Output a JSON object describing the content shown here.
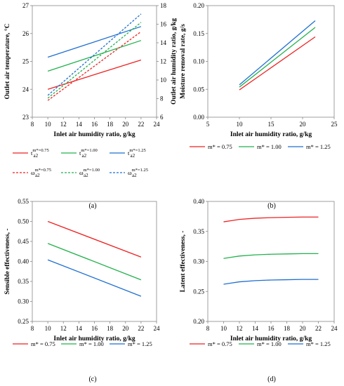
{
  "chart_data": [
    {
      "id": "a",
      "type": "line",
      "panel_label": "(a)",
      "xlabel": "Inlet air humidity ratio, g/kg",
      "ylabel": "Outlet air temperature, °C",
      "ylabel_right": "Outlet air humidity ratio, g/kg",
      "xlim": [
        8,
        24
      ],
      "xticks": [
        "8",
        "10",
        "12",
        "14",
        "16",
        "18",
        "20",
        "22",
        "24"
      ],
      "ylim": [
        23,
        27
      ],
      "yticks": [
        "23",
        "24",
        "25",
        "26",
        "27"
      ],
      "ylim_right": [
        6,
        18
      ],
      "yticks_right": [
        "6",
        "8",
        "10",
        "12",
        "14",
        "16",
        "18"
      ],
      "grid": false,
      "legend": {
        "placement": "below",
        "columns": 3
      },
      "series": [
        {
          "base": "t",
          "sub": "a2",
          "sup": "m*=0.75",
          "color": "#ee2222",
          "dash": "solid",
          "axis": "left",
          "x": [
            10,
            22
          ],
          "y": [
            24.0,
            25.05
          ]
        },
        {
          "base": "t",
          "sub": "a2",
          "sup": "m*=1.00",
          "color": "#22b14c",
          "dash": "solid",
          "axis": "left",
          "x": [
            10,
            22
          ],
          "y": [
            24.65,
            25.75
          ]
        },
        {
          "base": "t",
          "sub": "a2",
          "sup": "m*=1.25",
          "color": "#1f6fd1",
          "dash": "solid",
          "axis": "left",
          "x": [
            10,
            22
          ],
          "y": [
            25.15,
            26.25
          ]
        },
        {
          "base": "ω",
          "sub": "a2",
          "sup": "m*=0.75",
          "color": "#ee2222",
          "dash": "dashed",
          "axis": "right",
          "x": [
            10,
            22
          ],
          "y": [
            7.8,
            15.2
          ]
        },
        {
          "base": "ω",
          "sub": "a2",
          "sup": "m*=1.00",
          "color": "#22b14c",
          "dash": "dashed",
          "axis": "right",
          "x": [
            10,
            22
          ],
          "y": [
            8.05,
            16.2
          ]
        },
        {
          "base": "ω",
          "sub": "a2",
          "sup": "m*=1.25",
          "color": "#1f6fd1",
          "dash": "dashed",
          "axis": "right",
          "x": [
            10,
            22
          ],
          "y": [
            8.35,
            17.1
          ]
        }
      ]
    },
    {
      "id": "b",
      "type": "line",
      "panel_label": "(b)",
      "xlabel": "Inlet air humidity ratio, g/kg",
      "ylabel": "Moisture removal rate, g/s",
      "xlim": [
        5,
        25
      ],
      "xticks": [
        "5",
        "10",
        "15",
        "20",
        "25"
      ],
      "ylim": [
        0,
        0.2
      ],
      "yticks": [
        "0.00",
        "0.05",
        "0.10",
        "0.15",
        "0.20"
      ],
      "grid": false,
      "legend": {
        "placement": "below",
        "columns": 3
      },
      "series": [
        {
          "name": "m* = 0.75",
          "color": "#ee2222",
          "x": [
            10,
            22
          ],
          "y": [
            0.049,
            0.144
          ]
        },
        {
          "name": "m* = 1.00",
          "color": "#22b14c",
          "x": [
            10,
            22
          ],
          "y": [
            0.054,
            0.161
          ]
        },
        {
          "name": "m* = 1.25",
          "color": "#1f6fd1",
          "x": [
            10,
            22
          ],
          "y": [
            0.058,
            0.173
          ]
        }
      ]
    },
    {
      "id": "c",
      "type": "line",
      "panel_label": "(c)",
      "xlabel": "Inlet air humidity ratio, g/kg",
      "ylabel": "Sensible effectiveness, -",
      "xlim": [
        8,
        24
      ],
      "xticks": [
        "8",
        "10",
        "12",
        "14",
        "16",
        "18",
        "20",
        "22",
        "24"
      ],
      "ylim": [
        0.25,
        0.55
      ],
      "yticks": [
        "0.25",
        "0.30",
        "0.35",
        "0.40",
        "0.45",
        "0.50",
        "0.55"
      ],
      "grid": false,
      "legend": {
        "placement": "below",
        "columns": 3
      },
      "series": [
        {
          "name": "m* = 0.75",
          "color": "#ee2222",
          "x": [
            10,
            22
          ],
          "y": [
            0.5,
            0.411
          ]
        },
        {
          "name": "m* = 1.00",
          "color": "#22b14c",
          "x": [
            10,
            22
          ],
          "y": [
            0.445,
            0.354
          ]
        },
        {
          "name": "m* = 1.25",
          "color": "#1f6fd1",
          "x": [
            10,
            22
          ],
          "y": [
            0.404,
            0.313
          ]
        }
      ]
    },
    {
      "id": "d",
      "type": "line",
      "panel_label": "(d)",
      "xlabel": "Inlet air humidity ratio, g/kg",
      "ylabel": "Latent effectiveness, -",
      "xlim": [
        8,
        24
      ],
      "xticks": [
        "8",
        "10",
        "12",
        "14",
        "16",
        "18",
        "20",
        "22",
        "24"
      ],
      "ylim": [
        0.2,
        0.4
      ],
      "yticks": [
        "0.20",
        "0.25",
        "0.30",
        "0.35",
        "0.40"
      ],
      "grid": false,
      "legend": {
        "placement": "below",
        "columns": 3
      },
      "series": [
        {
          "name": "m* = 0.75",
          "color": "#ee2222",
          "x": [
            10,
            11,
            12,
            14,
            16,
            18,
            20,
            22
          ],
          "y": [
            0.366,
            0.368,
            0.37,
            0.372,
            0.373,
            0.3735,
            0.374,
            0.374
          ]
        },
        {
          "name": "m* = 1.00",
          "color": "#22b14c",
          "x": [
            10,
            11,
            12,
            14,
            16,
            18,
            20,
            22
          ],
          "y": [
            0.305,
            0.307,
            0.309,
            0.311,
            0.312,
            0.3125,
            0.313,
            0.313
          ]
        },
        {
          "name": "m* = 1.25",
          "color": "#1f6fd1",
          "x": [
            10,
            11,
            12,
            14,
            16,
            18,
            20,
            22
          ],
          "y": [
            0.262,
            0.264,
            0.266,
            0.268,
            0.269,
            0.2695,
            0.27,
            0.27
          ]
        }
      ]
    }
  ]
}
